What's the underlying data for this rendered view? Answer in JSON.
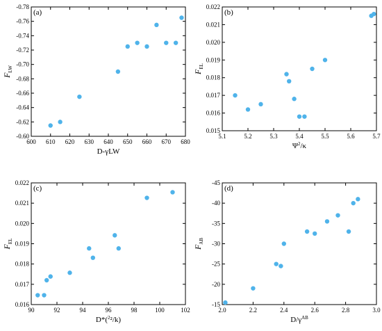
{
  "chart_data": [
    {
      "type": "scatter",
      "panel_label": "(a)",
      "xlabel": "D-γLW",
      "ylabel_main": "F",
      "ylabel_sub": "LW",
      "xlim": [
        600,
        680
      ],
      "ylim": [
        -0.6,
        -0.78
      ],
      "xticks": [
        "600",
        "610",
        "620",
        "630",
        "640",
        "650",
        "660",
        "670",
        "680"
      ],
      "yticks": [
        "-0.78",
        "-0.76",
        "-0.74",
        "-0.72",
        "-0.70",
        "-0.68",
        "-0.66",
        "-0.64",
        "-0.62",
        "-0.60"
      ],
      "x": [
        610,
        615,
        625,
        645,
        650,
        655,
        660,
        665,
        670,
        675,
        678
      ],
      "y": [
        -0.615,
        -0.62,
        -0.655,
        -0.69,
        -0.725,
        -0.73,
        -0.725,
        -0.755,
        -0.73,
        -0.73,
        -0.765
      ]
    },
    {
      "type": "scatter",
      "panel_label": "(b)",
      "xlabel": "Ψ²/κ",
      "ylabel_main": "F",
      "ylabel_sub": "EL",
      "xlim": [
        5.1,
        5.7
      ],
      "ylim": [
        0.015,
        0.022
      ],
      "xticks": [
        "5.1",
        "5.2",
        "5.3",
        "5.4",
        "5.5",
        "5.6",
        "5.7"
      ],
      "yticks": [
        "0.022",
        "0.021",
        "0.020",
        "0.019",
        "0.018",
        "0.017",
        "0.016",
        "0.015"
      ],
      "x": [
        5.15,
        5.2,
        5.25,
        5.35,
        5.36,
        5.38,
        5.4,
        5.42,
        5.45,
        5.5,
        5.68,
        5.69
      ],
      "y": [
        0.017,
        0.0162,
        0.0165,
        0.0182,
        0.0178,
        0.0168,
        0.0158,
        0.0158,
        0.0185,
        0.019,
        0.0215,
        0.0216
      ]
    },
    {
      "type": "scatter",
      "panel_label": "(c)",
      "xlabel": "D*(Ψ²/k)",
      "ylabel_main": "F",
      "ylabel_sub": "EL",
      "xlim": [
        90,
        102
      ],
      "ylim": [
        0.0155,
        0.022
      ],
      "xticks": [
        "90",
        "92",
        "94",
        "96",
        "98",
        "100",
        "102"
      ],
      "yticks": [
        "0.022",
        "0.021",
        "0.020",
        "0.019",
        "0.018",
        "0.017",
        "0.016"
      ],
      "x": [
        90.5,
        91.0,
        91.2,
        91.5,
        93.0,
        94.5,
        94.8,
        96.5,
        96.8,
        99.0,
        101.0
      ],
      "y": [
        0.016,
        0.016,
        0.0168,
        0.017,
        0.0172,
        0.0185,
        0.018,
        0.0192,
        0.0185,
        0.0212,
        0.0215
      ]
    },
    {
      "type": "scatter",
      "panel_label": "(d)",
      "xlabel": "D/γAB",
      "ylabel_main": "F",
      "ylabel_sub": "AB",
      "xlim": [
        2.0,
        3.0
      ],
      "ylim": [
        -15,
        -45
      ],
      "xticks": [
        "2.0",
        "2.2",
        "2.4",
        "2.6",
        "2.8",
        "3.0"
      ],
      "yticks": [
        "-45",
        "-40",
        "-35",
        "-30",
        "-25",
        "-20",
        "-15"
      ],
      "x": [
        2.02,
        2.2,
        2.35,
        2.38,
        2.4,
        2.55,
        2.6,
        2.68,
        2.75,
        2.82,
        2.85,
        2.88
      ],
      "y": [
        -15.5,
        -19,
        -25,
        -24.5,
        -30,
        -33,
        -32.5,
        -35.5,
        -37,
        -33,
        -40,
        -41
      ]
    }
  ]
}
